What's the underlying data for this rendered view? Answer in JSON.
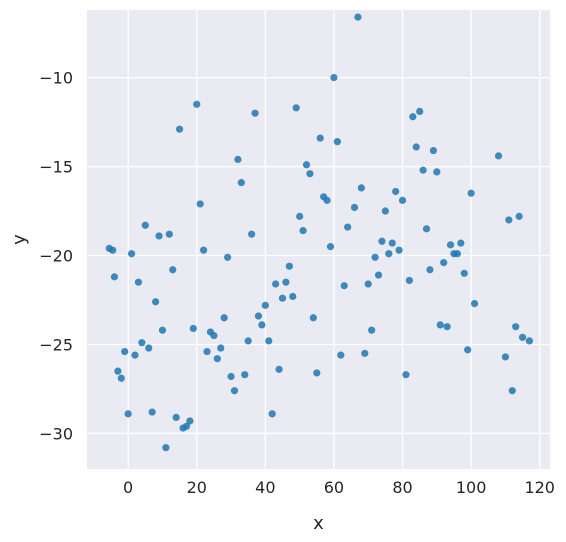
{
  "chart_data": {
    "type": "scatter",
    "title": "",
    "xlabel": "x",
    "ylabel": "y",
    "xlim": [
      -12,
      123
    ],
    "ylim": [
      -32,
      -6.2
    ],
    "x_ticks": [
      0,
      20,
      40,
      60,
      80,
      100,
      120
    ],
    "y_ticks": [
      -30,
      -25,
      -20,
      -15,
      -10
    ],
    "x_tick_labels": [
      "0",
      "20",
      "40",
      "60",
      "80",
      "100",
      "120"
    ],
    "y_tick_labels": [
      "−30",
      "−25",
      "−20",
      "−15",
      "−10"
    ],
    "grid": true,
    "colors": {
      "background": "#eaeaf2",
      "grid": "#ffffff",
      "point": "#1f77b4"
    },
    "series": [
      {
        "points": [
          [
            -5.5,
            -19.6
          ],
          [
            -4.5,
            -19.7
          ],
          [
            -4,
            -21.2
          ],
          [
            -3,
            -26.5
          ],
          [
            -2,
            -26.9
          ],
          [
            -1,
            -25.4
          ],
          [
            0,
            -28.9
          ],
          [
            1,
            -19.9
          ],
          [
            2,
            -25.6
          ],
          [
            3,
            -21.5
          ],
          [
            4,
            -24.9
          ],
          [
            5,
            -18.3
          ],
          [
            6,
            -25.2
          ],
          [
            7,
            -28.8
          ],
          [
            8,
            -22.6
          ],
          [
            9,
            -18.9
          ],
          [
            10,
            -24.2
          ],
          [
            11,
            -30.8
          ],
          [
            12,
            -18.8
          ],
          [
            13,
            -20.8
          ],
          [
            14,
            -29.1
          ],
          [
            15,
            -12.9
          ],
          [
            16,
            -29.7
          ],
          [
            17,
            -29.6
          ],
          [
            18,
            -29.3
          ],
          [
            19,
            -24.1
          ],
          [
            20,
            -11.5
          ],
          [
            21,
            -17.1
          ],
          [
            22,
            -19.7
          ],
          [
            23,
            -25.4
          ],
          [
            24,
            -24.3
          ],
          [
            25,
            -24.5
          ],
          [
            26,
            -25.8
          ],
          [
            27,
            -25.2
          ],
          [
            28,
            -23.5
          ],
          [
            29,
            -20.1
          ],
          [
            30,
            -26.8
          ],
          [
            31,
            -27.6
          ],
          [
            32,
            -14.6
          ],
          [
            33,
            -15.9
          ],
          [
            34,
            -26.7
          ],
          [
            35,
            -24.8
          ],
          [
            36,
            -18.8
          ],
          [
            37,
            -12
          ],
          [
            38,
            -23.4
          ],
          [
            39,
            -23.9
          ],
          [
            40,
            -22.8
          ],
          [
            41,
            -24.8
          ],
          [
            42,
            -28.9
          ],
          [
            43,
            -21.6
          ],
          [
            44,
            -26.4
          ],
          [
            45,
            -22.4
          ],
          [
            46,
            -21.5
          ],
          [
            47,
            -20.6
          ],
          [
            48,
            -22.3
          ],
          [
            49,
            -11.7
          ],
          [
            50,
            -17.8
          ],
          [
            51,
            -18.6
          ],
          [
            52,
            -14.9
          ],
          [
            53,
            -15.4
          ],
          [
            54,
            -23.5
          ],
          [
            55,
            -26.6
          ],
          [
            56,
            -13.4
          ],
          [
            57,
            -16.7
          ],
          [
            58,
            -16.9
          ],
          [
            59,
            -19.5
          ],
          [
            60,
            -10
          ],
          [
            61,
            -13.6
          ],
          [
            62,
            -25.6
          ],
          [
            63,
            -21.7
          ],
          [
            64,
            -18.4
          ],
          [
            66,
            -17.3
          ],
          [
            67,
            -6.6
          ],
          [
            68,
            -16.2
          ],
          [
            69,
            -25.5
          ],
          [
            70,
            -21.6
          ],
          [
            71,
            -24.2
          ],
          [
            72,
            -20.1
          ],
          [
            73,
            -21.1
          ],
          [
            74,
            -19.2
          ],
          [
            75,
            -17.5
          ],
          [
            76,
            -19.9
          ],
          [
            77,
            -19.3
          ],
          [
            78,
            -16.4
          ],
          [
            79,
            -19.7
          ],
          [
            80,
            -16.9
          ],
          [
            81,
            -26.7
          ],
          [
            82,
            -21.4
          ],
          [
            83,
            -12.2
          ],
          [
            84,
            -13.9
          ],
          [
            85,
            -11.9
          ],
          [
            86,
            -15.2
          ],
          [
            87,
            -18.5
          ],
          [
            88,
            -20.8
          ],
          [
            89,
            -14.1
          ],
          [
            90,
            -15.3
          ],
          [
            91,
            -23.9
          ],
          [
            92,
            -20.4
          ],
          [
            93,
            -24
          ],
          [
            94,
            -19.4
          ],
          [
            95,
            -19.9
          ],
          [
            96,
            -19.9
          ],
          [
            97,
            -19.3
          ],
          [
            98,
            -21
          ],
          [
            99,
            -25.3
          ],
          [
            100,
            -16.5
          ],
          [
            101,
            -22.7
          ],
          [
            108,
            -14.4
          ],
          [
            110,
            -25.7
          ],
          [
            111,
            -18
          ],
          [
            112,
            -27.6
          ],
          [
            113,
            -24
          ],
          [
            114,
            -17.8
          ],
          [
            115,
            -24.6
          ],
          [
            117,
            -24.8
          ]
        ]
      }
    ]
  }
}
